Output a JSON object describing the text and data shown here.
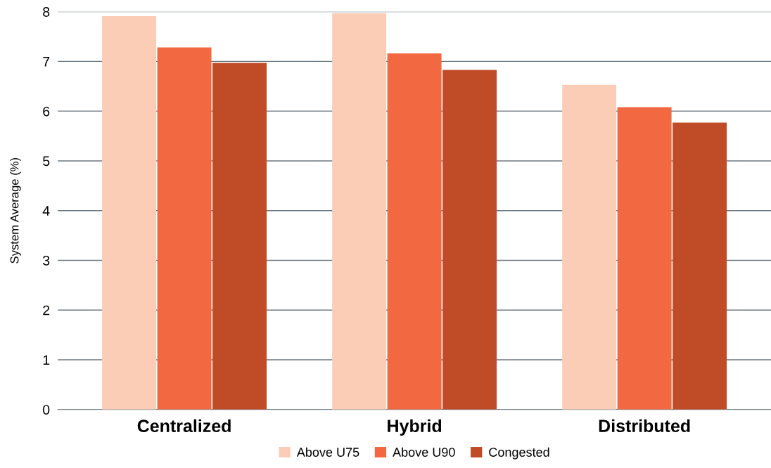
{
  "chart_data": {
    "type": "bar",
    "ylabel": "System Average (%)",
    "categories": [
      "Centralized",
      "Hybrid",
      "Distributed"
    ],
    "series": [
      {
        "name": "Above U75",
        "color": "#fbcdb6",
        "values": [
          7.91,
          7.97,
          6.53
        ]
      },
      {
        "name": "Above U90",
        "color": "#f26841",
        "values": [
          7.28,
          7.16,
          6.08
        ]
      },
      {
        "name": "Congested",
        "color": "#bf4b27",
        "values": [
          6.97,
          6.83,
          5.77
        ]
      }
    ],
    "ylim": [
      0,
      8
    ],
    "yticks": [
      0,
      1,
      2,
      3,
      4,
      5,
      6,
      7,
      8
    ],
    "grid": "y",
    "legend": "bottom"
  }
}
